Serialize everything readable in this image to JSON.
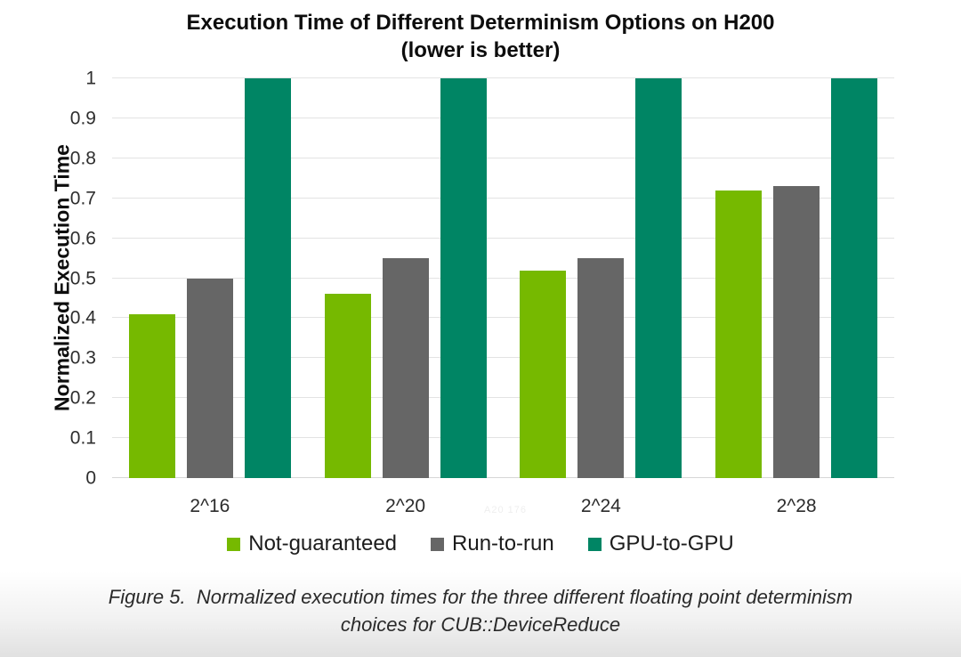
{
  "chart": {
    "title_line1": "Execution Time of Different Determinism Options on H200",
    "title_line2": "(lower is better)",
    "y_axis_title": "Normalized Execution Time"
  },
  "chart_data": {
    "type": "bar",
    "title": "Execution Time of Different Determinism Options on H200 (lower is better)",
    "xlabel": "",
    "ylabel": "Normalized Execution Time",
    "ylim": [
      0,
      1
    ],
    "ytick_labels": [
      "0",
      "0.1",
      "0.2",
      "0.3",
      "0.4",
      "0.5",
      "0.6",
      "0.7",
      "0.8",
      "0.9",
      "1"
    ],
    "categories": [
      "2^16",
      "2^20",
      "2^24",
      "2^28"
    ],
    "series": [
      {
        "name": "Not-guaranteed",
        "color": "#76b900",
        "values": [
          0.41,
          0.46,
          0.52,
          0.72
        ]
      },
      {
        "name": "Run-to-run",
        "color": "#666666",
        "values": [
          0.5,
          0.55,
          0.55,
          0.73
        ]
      },
      {
        "name": "GPU-to-GPU",
        "color": "#008564",
        "values": [
          1.0,
          1.0,
          1.0,
          1.0
        ]
      }
    ],
    "grid": "horizontal",
    "legend_position": "bottom"
  },
  "watermark": "A20 176",
  "caption": {
    "line1": "Figure 5.  Normalized execution times for the three different floating point determinism",
    "line2": "choices for CUB::DeviceReduce"
  }
}
